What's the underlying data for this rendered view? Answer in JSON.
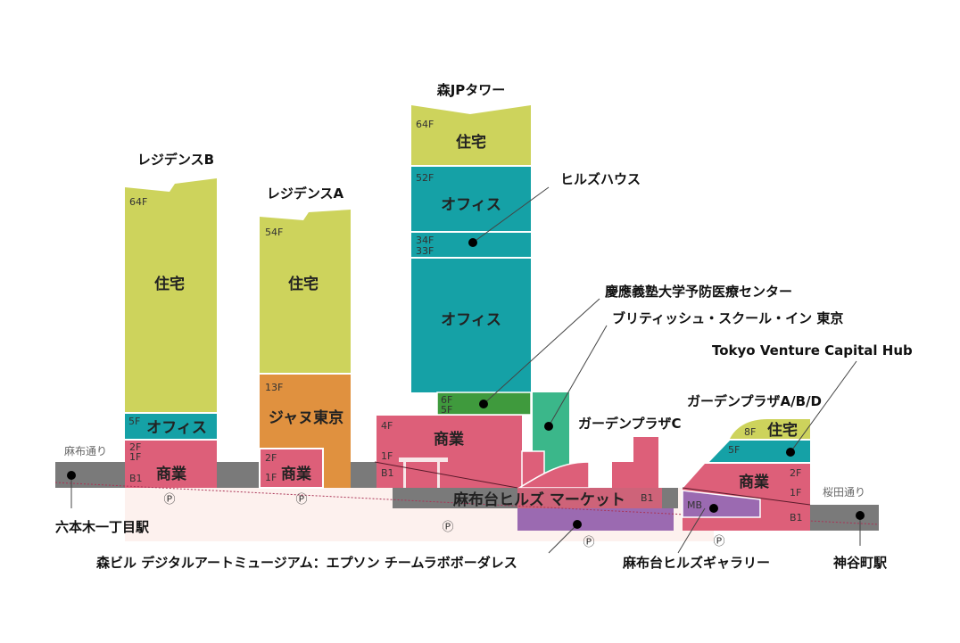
{
  "colors": {
    "residential": "#cdd35c",
    "office": "#15a1a6",
    "commercial": "#dd5f79",
    "hotel": "#e0913f",
    "clinic": "#3f9a3d",
    "school": "#3bb78a",
    "gallery": "#9b6ab1",
    "road": "#7a7a7a"
  },
  "buildings": {
    "residence_b": {
      "name": "レジデンスB",
      "top_floor": "64F",
      "residential": "住宅",
      "office_floor": "5F",
      "office": "オフィス",
      "floors": [
        "2F",
        "1F",
        "B1"
      ],
      "commercial": "商業"
    },
    "residence_a": {
      "name": "レジデンスA",
      "top_floor": "54F",
      "residential": "住宅",
      "hotel_floor": "13F",
      "hotel": "ジャヌ東京",
      "floors": [
        "2F",
        "1F"
      ],
      "commercial": "商業"
    },
    "mori_jp_tower": {
      "name": "森JPタワー",
      "top_floor": "64F",
      "residential": "住宅",
      "office_top": "52F",
      "office": "オフィス",
      "hills_house_floors": [
        "34F",
        "33F"
      ],
      "office_lower": "オフィス",
      "clinic_floors": [
        "6F",
        "5F"
      ],
      "commercial_floors": [
        "4F",
        "1F",
        "B1"
      ],
      "commercial": "商業"
    },
    "garden_plaza_c": {
      "name": "ガーデンプラザC"
    },
    "market": {
      "name": "麻布台ヒルズ マーケット",
      "floor": "B1"
    },
    "garden_plaza_abd": {
      "name": "ガーデンプラザA/B/D",
      "res_floor": "8F",
      "residential": "住宅",
      "office_floor": "5F",
      "floors": [
        "2F",
        "1F",
        "B1"
      ],
      "commercial": "商業",
      "mb": "MB"
    }
  },
  "callouts": {
    "hills_house": "ヒルズハウス",
    "keio": "慶應義塾大学予防医療センター",
    "british_school": "ブリティッシュ・スクール・イン 東京",
    "tvch": "Tokyo Venture Capital Hub",
    "teamlab": "森ビル デジタルアートミュージアム：エプソン チームラボボーダレス",
    "gallery": "麻布台ヒルズギャラリー"
  },
  "roads": {
    "left": "麻布通り",
    "right": "桜田通り"
  },
  "stations": {
    "left": "六本木一丁目駅",
    "right": "神谷町駅"
  },
  "parking_symbol": "Ⓟ"
}
